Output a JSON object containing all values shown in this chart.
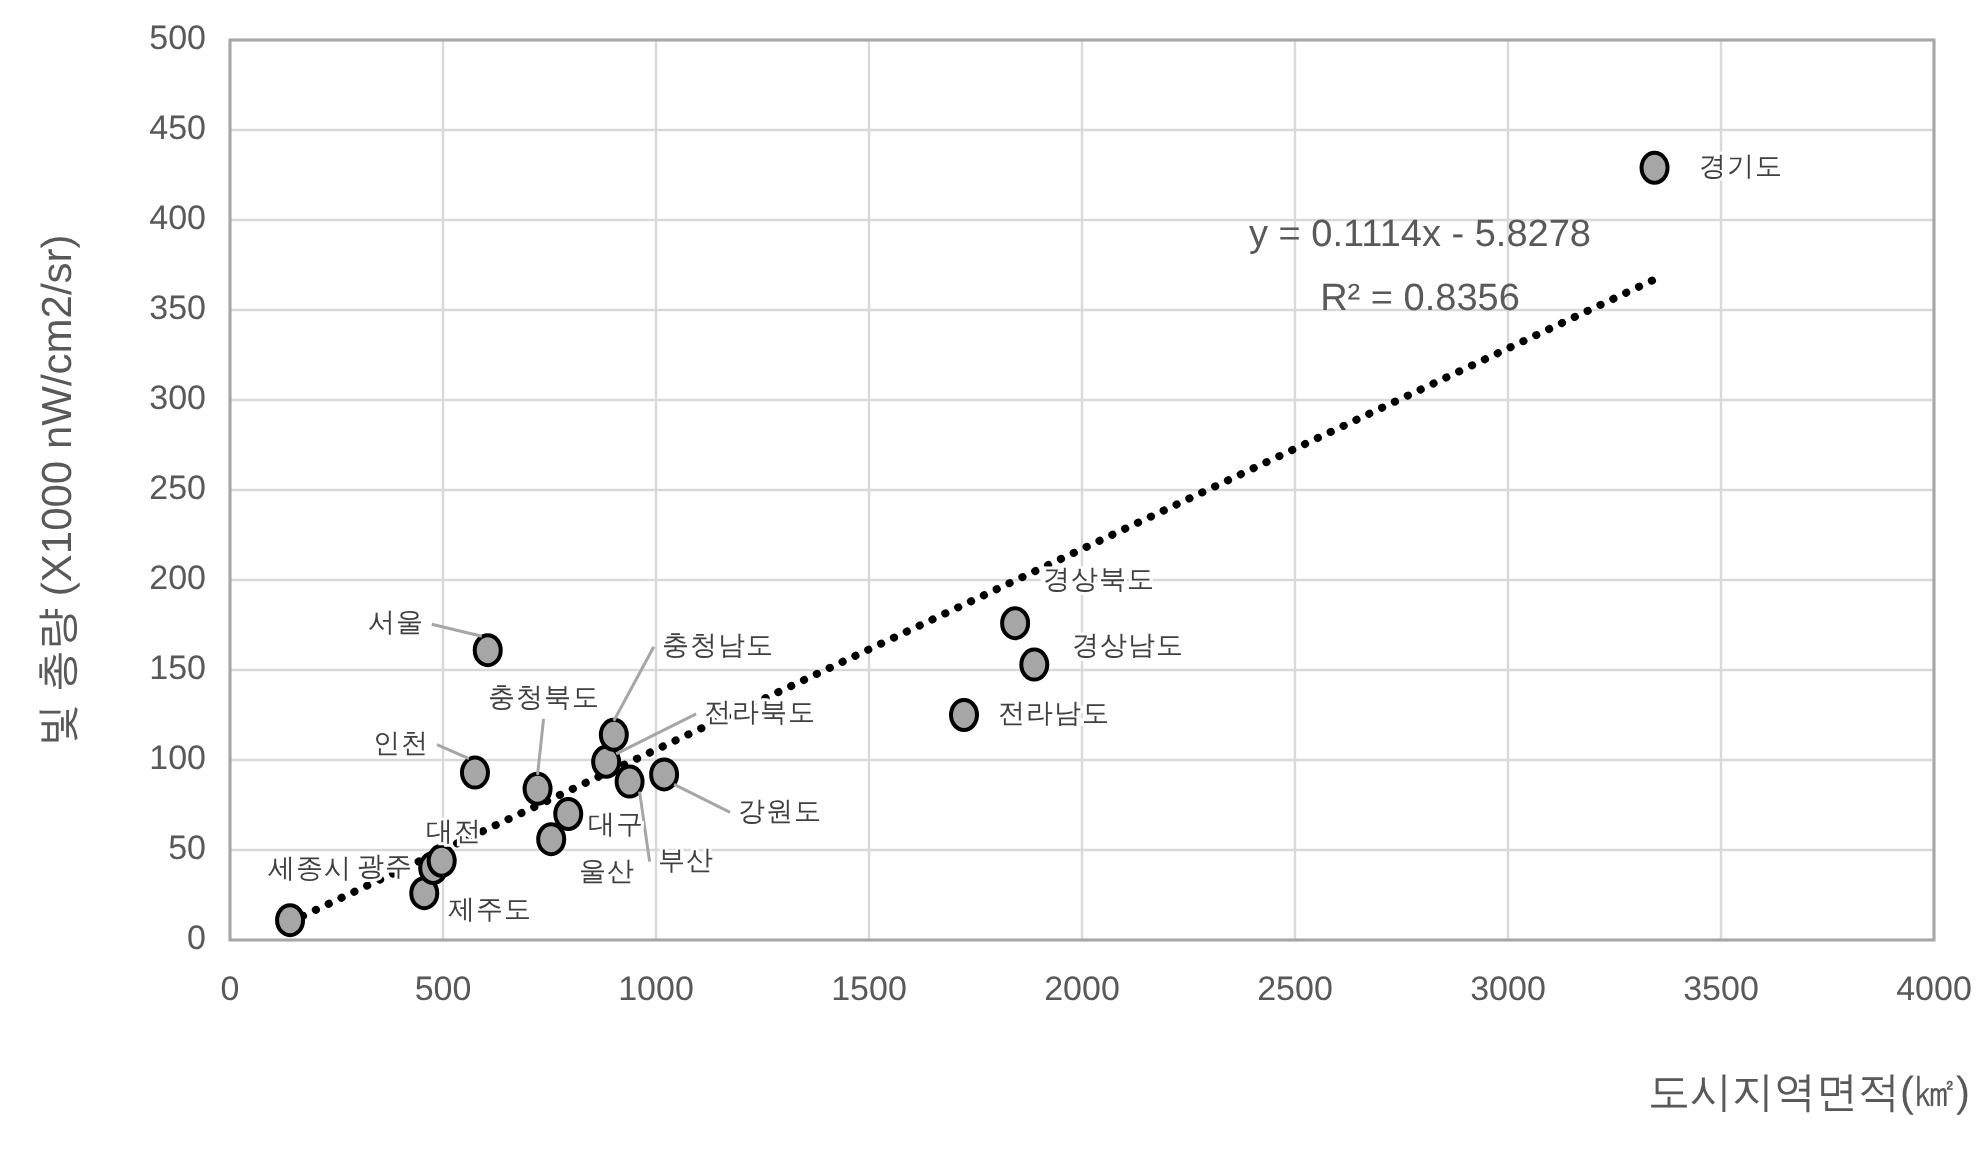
{
  "chart_data": {
    "type": "scatter",
    "xlabel": "도시지역면적(㎢)",
    "ylabel": "빛 총량 (X1000 nW/cm2/sr)",
    "xlim": [
      0,
      4000
    ],
    "xticks": [
      0,
      500,
      1000,
      1500,
      2000,
      2500,
      3000,
      3500,
      4000
    ],
    "ylim": [
      0,
      500
    ],
    "yticks": [
      0,
      50,
      100,
      150,
      200,
      250,
      300,
      350,
      400,
      450,
      500
    ],
    "grid": true,
    "marker": "circle",
    "series": [
      {
        "color": "#a6a6a6",
        "x": [
          141,
          456,
          477,
          497,
          575,
          605,
          754,
          722,
          794,
          883,
          901,
          938,
          1019,
          1723,
          1843,
          1888,
          3344
        ],
        "values": [
          11,
          26,
          40,
          44,
          93,
          161,
          56,
          84,
          70,
          99,
          114,
          88,
          92,
          125,
          176,
          153,
          429
        ]
      },
      {
        "type": "line",
        "color": "#000000",
        "line_style": "dotted",
        "marker": "none",
        "x": [
          141,
          3344
        ],
        "values": [
          10,
          367
        ]
      }
    ],
    "annotations": [
      {
        "text": "세종시",
        "x": 141,
        "y": 11
      },
      {
        "text": "제주도",
        "x": 456,
        "y": 26
      },
      {
        "text": "광주",
        "x": 477,
        "y": 40
      },
      {
        "text": "대전",
        "x": 497,
        "y": 44
      },
      {
        "text": "인천",
        "x": 575,
        "y": 93
      },
      {
        "text": "서울",
        "x": 605,
        "y": 161
      },
      {
        "text": "울산",
        "x": 754,
        "y": 56
      },
      {
        "text": "충청북도",
        "x": 722,
        "y": 84
      },
      {
        "text": "대구",
        "x": 794,
        "y": 70
      },
      {
        "text": "전라북도",
        "x": 883,
        "y": 99
      },
      {
        "text": "충청남도",
        "x": 901,
        "y": 114
      },
      {
        "text": "부산",
        "x": 938,
        "y": 88
      },
      {
        "text": "강원도",
        "x": 1019,
        "y": 92
      },
      {
        "text": "전라남도",
        "x": 1723,
        "y": 125
      },
      {
        "text": "경상북도",
        "x": 1843,
        "y": 176
      },
      {
        "text": "경상남도",
        "x": 1888,
        "y": 153
      },
      {
        "text": "경기도",
        "x": 3344,
        "y": 429
      },
      "y = 0.1114x - 5.8278",
      "R² = 0.8356"
    ]
  }
}
